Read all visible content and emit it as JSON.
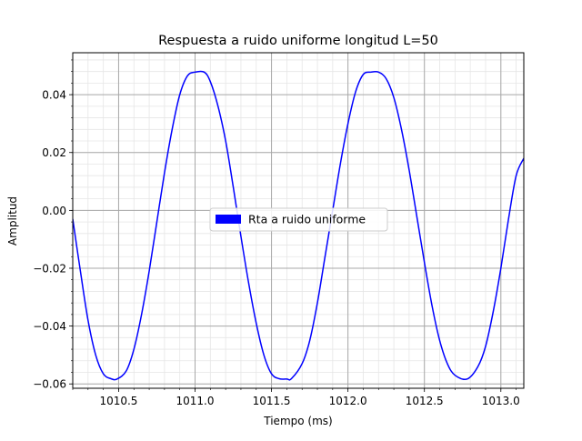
{
  "chart_data": {
    "type": "line",
    "title": "Respuesta a ruido uniforme longitud L=50",
    "xlabel": "Tiempo (ms)",
    "ylabel": "Amplitud",
    "xlim": [
      1010.2,
      1013.15
    ],
    "ylim": [
      -0.0615,
      0.0545
    ],
    "x_ticks": [
      1010.5,
      1011.0,
      1011.5,
      1012.0,
      1012.5,
      1013.0
    ],
    "x_tick_labels": [
      "1010.5",
      "1011.0",
      "1011.5",
      "1012.0",
      "1012.5",
      "1013.0"
    ],
    "y_ticks": [
      -0.06,
      -0.04,
      -0.02,
      0.0,
      0.02,
      0.04
    ],
    "y_tick_labels": [
      "−0.06",
      "−0.04",
      "−0.02",
      "0.00",
      "0.02",
      "0.04"
    ],
    "grid": true,
    "minor_grid": true,
    "legend_position": "center",
    "series": [
      {
        "name": "Rta a ruido uniforme",
        "color": "#0000ff",
        "x": [
          1010.2,
          1010.25,
          1010.3,
          1010.35,
          1010.4,
          1010.45,
          1010.49,
          1010.55,
          1010.6,
          1010.65,
          1010.7,
          1010.75,
          1010.8,
          1010.85,
          1010.9,
          1010.95,
          1011.0,
          1011.06,
          1011.1,
          1011.15,
          1011.2,
          1011.25,
          1011.3,
          1011.35,
          1011.4,
          1011.45,
          1011.5,
          1011.55,
          1011.6,
          1011.63,
          1011.7,
          1011.75,
          1011.8,
          1011.85,
          1011.9,
          1011.95,
          1012.0,
          1012.05,
          1012.1,
          1012.15,
          1012.2,
          1012.25,
          1012.3,
          1012.35,
          1012.4,
          1012.45,
          1012.5,
          1012.55,
          1012.6,
          1012.65,
          1012.7,
          1012.78,
          1012.85,
          1012.9,
          1012.95,
          1013.0,
          1013.05,
          1013.1,
          1013.15
        ],
        "y": [
          -0.003,
          -0.021,
          -0.038,
          -0.05,
          -0.0565,
          -0.0582,
          -0.0583,
          -0.0555,
          -0.048,
          -0.036,
          -0.021,
          -0.004,
          0.013,
          0.028,
          0.04,
          0.0465,
          0.0478,
          0.0478,
          0.0445,
          0.036,
          0.024,
          0.008,
          -0.009,
          -0.025,
          -0.039,
          -0.05,
          -0.0565,
          -0.0582,
          -0.0583,
          -0.0582,
          -0.053,
          -0.045,
          -0.032,
          -0.016,
          0.0,
          0.016,
          0.03,
          0.041,
          0.047,
          0.0478,
          0.0478,
          0.0455,
          0.039,
          0.028,
          0.014,
          -0.002,
          -0.018,
          -0.033,
          -0.045,
          -0.053,
          -0.057,
          -0.0583,
          -0.054,
          -0.047,
          -0.035,
          -0.02,
          -0.003,
          0.012,
          0.018
        ]
      }
    ]
  }
}
